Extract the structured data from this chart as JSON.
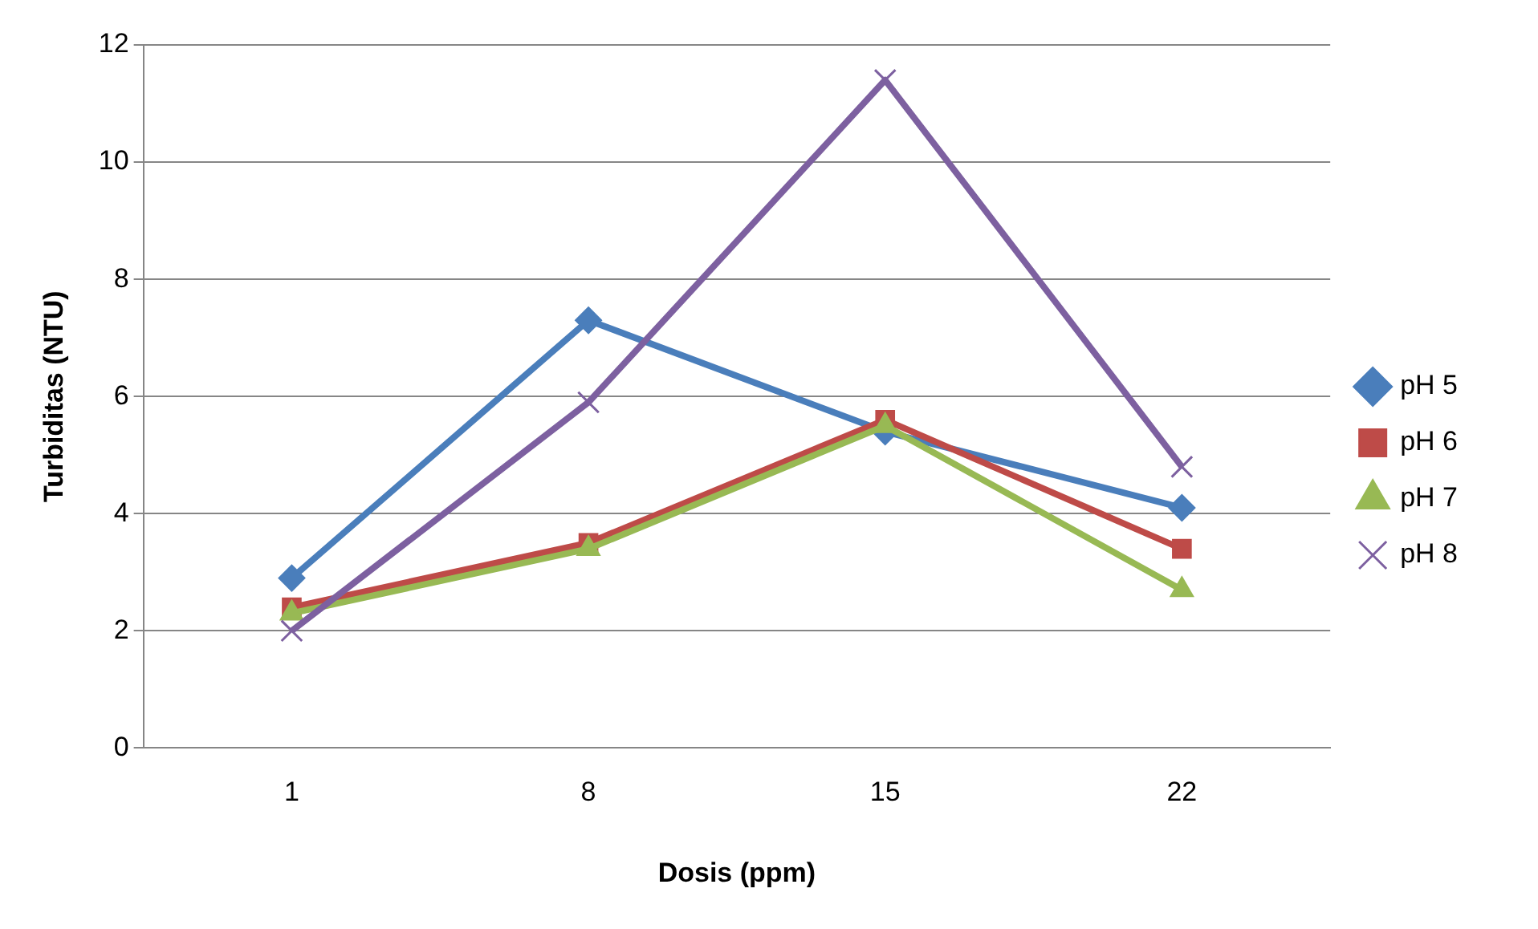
{
  "chart_data": {
    "type": "line",
    "xlabel": "Dosis (ppm)",
    "ylabel": "Turbiditas (NTU)",
    "categories": [
      "1",
      "8",
      "15",
      "22"
    ],
    "series": [
      {
        "name": "pH 5",
        "color": "#4a7ebb",
        "marker": "diamond",
        "values": [
          2.9,
          7.3,
          5.4,
          4.1
        ]
      },
      {
        "name": "pH 6",
        "color": "#be4b48",
        "marker": "square",
        "values": [
          2.4,
          3.5,
          5.6,
          3.4
        ]
      },
      {
        "name": "pH 7",
        "color": "#98b954",
        "marker": "triangle",
        "values": [
          2.3,
          3.4,
          5.5,
          2.7
        ]
      },
      {
        "name": "pH 8",
        "color": "#7d60a0",
        "marker": "cross",
        "values": [
          2.0,
          5.9,
          11.4,
          4.8
        ]
      }
    ],
    "ylim": [
      0,
      12
    ],
    "yticks": [
      0,
      2,
      4,
      6,
      8,
      10,
      12
    ],
    "grid": "y",
    "legend": "right"
  }
}
